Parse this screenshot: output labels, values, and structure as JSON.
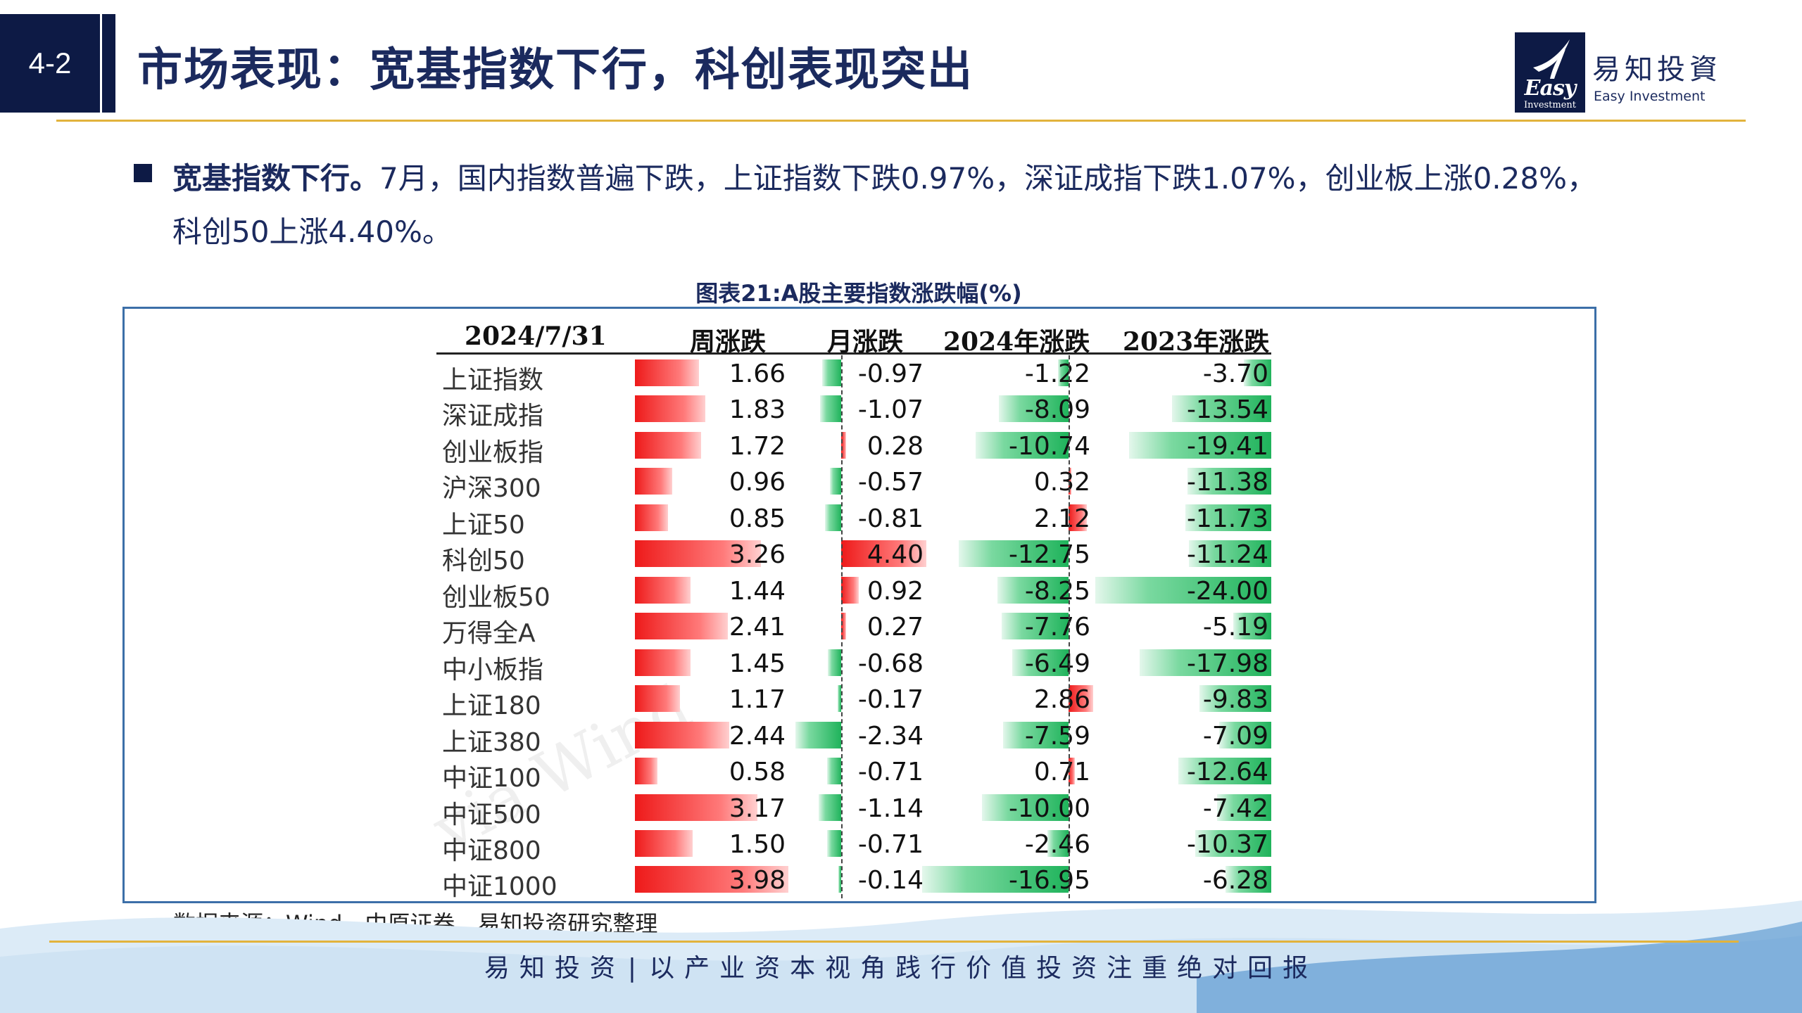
{
  "header": {
    "section_number": "4-2",
    "title": "市场表现：宽基指数下行，科创表现突出",
    "logo_cn": "易知投資",
    "logo_en": "Easy Investment",
    "logo_mark_text": "Easy",
    "logo_mark_subtext": "Investment"
  },
  "bullet": {
    "lead": "宽基指数下行。",
    "line1_rest": "7月，国内指数普遍下跌，上证指数下跌0.97%，深证成指下跌1.07%，创业板上涨0.28%，",
    "line2": "科创50上涨4.40%。"
  },
  "figure": {
    "title": "图表21:A股主要指数涨跌幅(%)",
    "watermark": "via Wind",
    "source": "数据来源：Wind、中原证券、易知投资研究整理"
  },
  "chart_data": {
    "type": "table",
    "columns": [
      "2024/7/31",
      "周涨跌",
      "月涨跌",
      "2024年涨跌",
      "2023年涨跌"
    ],
    "rows": [
      {
        "name": "上证指数",
        "values": [
          1.66,
          -0.97,
          -1.22,
          -3.7
        ],
        "labels": [
          "1.66",
          "-0.97",
          "-1.22",
          "-3.70"
        ]
      },
      {
        "name": "深证成指",
        "values": [
          1.83,
          -1.07,
          -8.09,
          -13.54
        ],
        "labels": [
          "1.83",
          "-1.07",
          "-8.09",
          "-13.54"
        ]
      },
      {
        "name": "创业板指",
        "values": [
          1.72,
          0.28,
          -10.74,
          -19.41
        ],
        "labels": [
          "1.72",
          "0.28",
          "-10.74",
          "-19.41"
        ]
      },
      {
        "name": "沪深300",
        "values": [
          0.96,
          -0.57,
          0.32,
          -11.38
        ],
        "labels": [
          "0.96",
          "-0.57",
          "0.32",
          "-11.38"
        ]
      },
      {
        "name": "上证50",
        "values": [
          0.85,
          -0.81,
          2.12,
          -11.73
        ],
        "labels": [
          "0.85",
          "-0.81",
          "2.12",
          "-11.73"
        ]
      },
      {
        "name": "科创50",
        "values": [
          3.26,
          4.4,
          -12.75,
          -11.24
        ],
        "labels": [
          "3.26",
          "4.40",
          "-12.75",
          "-11.24"
        ]
      },
      {
        "name": "创业板50",
        "values": [
          1.44,
          0.92,
          -8.25,
          -24.0
        ],
        "labels": [
          "1.44",
          "0.92",
          "-8.25",
          "-24.00"
        ]
      },
      {
        "name": "万得全A",
        "values": [
          2.41,
          0.27,
          -7.76,
          -5.19
        ],
        "labels": [
          "2.41",
          "0.27",
          "-7.76",
          "-5.19"
        ]
      },
      {
        "name": "中小板指",
        "values": [
          1.45,
          -0.68,
          -6.49,
          -17.98
        ],
        "labels": [
          "1.45",
          "-0.68",
          "-6.49",
          "-17.98"
        ]
      },
      {
        "name": "上证180",
        "values": [
          1.17,
          -0.17,
          2.86,
          -9.83
        ],
        "labels": [
          "1.17",
          "-0.17",
          "2.86",
          "-9.83"
        ]
      },
      {
        "name": "上证380",
        "values": [
          2.44,
          -2.34,
          -7.59,
          -7.09
        ],
        "labels": [
          "2.44",
          "-2.34",
          "-7.59",
          "-7.09"
        ]
      },
      {
        "name": "中证100",
        "values": [
          0.58,
          -0.71,
          0.71,
          -12.64
        ],
        "labels": [
          "0.58",
          "-0.71",
          "0.71",
          "-12.64"
        ]
      },
      {
        "name": "中证500",
        "values": [
          3.17,
          -1.14,
          -10.0,
          -7.42
        ],
        "labels": [
          "3.17",
          "-1.14",
          "-10.00",
          "-7.42"
        ]
      },
      {
        "name": "中证800",
        "values": [
          1.5,
          -0.71,
          -2.46,
          -10.37
        ],
        "labels": [
          "1.50",
          "-0.71",
          "-2.46",
          "-10.37"
        ]
      },
      {
        "name": "中证1000",
        "values": [
          3.98,
          -0.14,
          -16.95,
          -6.28
        ],
        "labels": [
          "3.98",
          "-0.14",
          "-16.95",
          "-6.28"
        ]
      }
    ],
    "colors": {
      "positive": "#ee1a1a",
      "negative": "#1fb35b"
    }
  },
  "footer": {
    "brand": "易知投资",
    "divider": "|",
    "slogan": "以产业资本视角践行价值投资注重绝对回报"
  }
}
